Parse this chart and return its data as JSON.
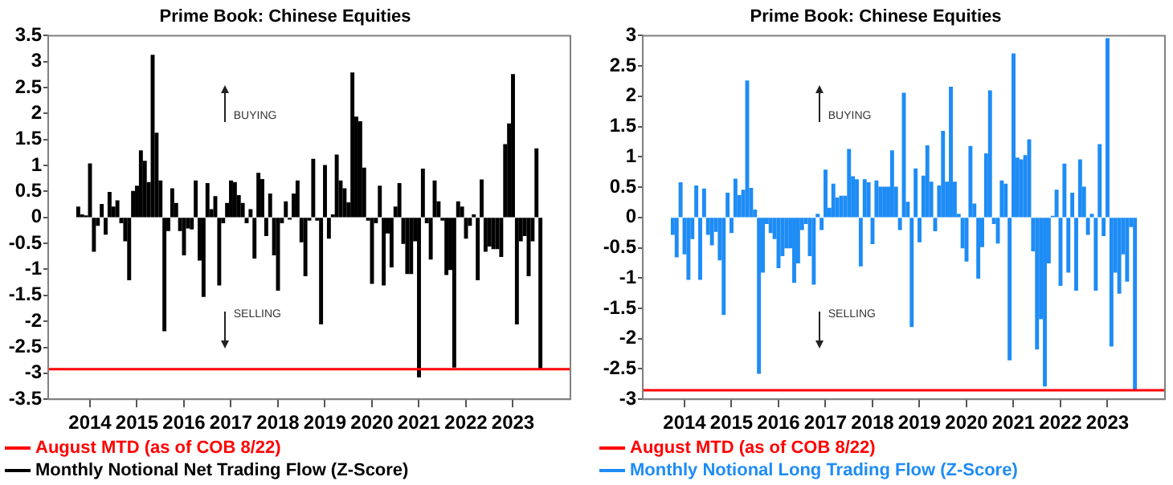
{
  "chart_data": [
    {
      "type": "bar",
      "title": "Prime Book: Chinese Equities",
      "legend": "bottom",
      "annotations": [
        "BUYING",
        "SELLING"
      ],
      "x": [
        "2013-10",
        "2013-11",
        "2013-12",
        "2014-01",
        "2014-02",
        "2014-03",
        "2014-04",
        "2014-05",
        "2014-06",
        "2014-07",
        "2014-08",
        "2014-09",
        "2014-10",
        "2014-11",
        "2014-12",
        "2015-01",
        "2015-02",
        "2015-03",
        "2015-04",
        "2015-05",
        "2015-06",
        "2015-07",
        "2015-08",
        "2015-09",
        "2015-10",
        "2015-11",
        "2015-12",
        "2016-01",
        "2016-02",
        "2016-03",
        "2016-04",
        "2016-05",
        "2016-06",
        "2016-07",
        "2016-08",
        "2016-09",
        "2016-10",
        "2016-11",
        "2016-12",
        "2017-01",
        "2017-02",
        "2017-03",
        "2017-04",
        "2017-05",
        "2017-06",
        "2017-07",
        "2017-08",
        "2017-09",
        "2017-10",
        "2017-11",
        "2017-12",
        "2018-01",
        "2018-02",
        "2018-03",
        "2018-04",
        "2018-05",
        "2018-06",
        "2018-07",
        "2018-08",
        "2018-09",
        "2018-10",
        "2018-11",
        "2018-12",
        "2019-01",
        "2019-02",
        "2019-03",
        "2019-04",
        "2019-05",
        "2019-06",
        "2019-07",
        "2019-08",
        "2019-09",
        "2019-10",
        "2019-11",
        "2019-12",
        "2020-01",
        "2020-02",
        "2020-03",
        "2020-04",
        "2020-05",
        "2020-06",
        "2020-07",
        "2020-08",
        "2020-09",
        "2020-10",
        "2020-11",
        "2020-12",
        "2021-01",
        "2021-02",
        "2021-03",
        "2021-04",
        "2021-05",
        "2021-06",
        "2021-07",
        "2021-08",
        "2021-09",
        "2021-10",
        "2021-11",
        "2021-12",
        "2022-01",
        "2022-02",
        "2022-03",
        "2022-04",
        "2022-05",
        "2022-06",
        "2022-07",
        "2022-08",
        "2022-09",
        "2022-10",
        "2022-11",
        "2022-12",
        "2023-01",
        "2023-02",
        "2023-03",
        "2023-04",
        "2023-05",
        "2023-06",
        "2023-07",
        "2023-08"
      ],
      "series": [
        {
          "name": "Monthly Notional Net Trading Flow (Z-Score)",
          "color": "#000000",
          "values": [
            0.2,
            0.05,
            0.03,
            1.03,
            -0.65,
            -0.15,
            0.25,
            -0.32,
            0.48,
            0.2,
            0.32,
            -0.1,
            -0.45,
            -1.2,
            0.5,
            0.6,
            1.28,
            1.08,
            0.67,
            3.12,
            1.62,
            0.7,
            -2.18,
            -0.25,
            0.55,
            0.27,
            -0.25,
            -0.72,
            -0.2,
            -0.22,
            0.7,
            -0.82,
            -1.52,
            0.65,
            0.15,
            0.4,
            -1.3,
            -0.1,
            0.27,
            0.7,
            0.67,
            0.42,
            0.27,
            -0.1,
            0.15,
            -0.78,
            0.85,
            0.73,
            -0.35,
            0.45,
            -0.72,
            -1.4,
            -0.1,
            0.3,
            -0.03,
            0.45,
            0.7,
            -0.47,
            -1.12,
            -0.05,
            1.12,
            -0.05,
            -2.05,
            1.0,
            -0.4,
            0.05,
            1.2,
            0.7,
            0.55,
            0.28,
            2.78,
            1.93,
            1.84,
            0.95,
            -0.05,
            -1.27,
            -0.1,
            0.6,
            -1.3,
            -0.3,
            -0.95,
            0.2,
            0.65,
            -0.5,
            -1.08,
            -1.08,
            -0.45,
            -3.07,
            0.93,
            -0.1,
            -0.8,
            0.7,
            0.3,
            -0.05,
            -1.1,
            -1.0,
            -2.88,
            0.3,
            0.2,
            -0.4,
            -0.15,
            0.05,
            -1.2,
            0.72,
            -0.65,
            -0.55,
            -0.6,
            -0.6,
            -0.75,
            1.4,
            1.8,
            2.75,
            -2.05,
            -0.45,
            -0.35,
            -1.12,
            -0.45,
            1.32,
            -2.92
          ]
        }
      ],
      "ref_lines": [
        {
          "axis": "y",
          "value": -2.92,
          "label": "August MTD (as of COB 8/22)",
          "color": "#ff0000"
        }
      ],
      "xlim": [
        "2013-09",
        "2023-09"
      ],
      "xticks": [
        "2014",
        "2015",
        "2016",
        "2017",
        "2018",
        "2019",
        "2020",
        "2021",
        "2022",
        "2023"
      ],
      "ylim": [
        -3.5,
        3.5
      ],
      "yticks": [
        -3.5,
        -3,
        -2.5,
        -2,
        -1.5,
        -1,
        -0.5,
        0,
        0.5,
        1,
        1.5,
        2,
        2.5,
        3,
        3.5
      ]
    },
    {
      "type": "bar",
      "title": "Prime Book: Chinese Equities",
      "legend": "bottom",
      "annotations": [
        "BUYING",
        "SELLING"
      ],
      "x": [
        "2013-10",
        "2013-11",
        "2013-12",
        "2014-01",
        "2014-02",
        "2014-03",
        "2014-04",
        "2014-05",
        "2014-06",
        "2014-07",
        "2014-08",
        "2014-09",
        "2014-10",
        "2014-11",
        "2014-12",
        "2015-01",
        "2015-02",
        "2015-03",
        "2015-04",
        "2015-05",
        "2015-06",
        "2015-07",
        "2015-08",
        "2015-09",
        "2015-10",
        "2015-11",
        "2015-12",
        "2016-01",
        "2016-02",
        "2016-03",
        "2016-04",
        "2016-05",
        "2016-06",
        "2016-07",
        "2016-08",
        "2016-09",
        "2016-10",
        "2016-11",
        "2016-12",
        "2017-01",
        "2017-02",
        "2017-03",
        "2017-04",
        "2017-05",
        "2017-06",
        "2017-07",
        "2017-08",
        "2017-09",
        "2017-10",
        "2017-11",
        "2017-12",
        "2018-01",
        "2018-02",
        "2018-03",
        "2018-04",
        "2018-05",
        "2018-06",
        "2018-07",
        "2018-08",
        "2018-09",
        "2018-10",
        "2018-11",
        "2018-12",
        "2019-01",
        "2019-02",
        "2019-03",
        "2019-04",
        "2019-05",
        "2019-06",
        "2019-07",
        "2019-08",
        "2019-09",
        "2019-10",
        "2019-11",
        "2019-12",
        "2020-01",
        "2020-02",
        "2020-03",
        "2020-04",
        "2020-05",
        "2020-06",
        "2020-07",
        "2020-08",
        "2020-09",
        "2020-10",
        "2020-11",
        "2020-12",
        "2021-01",
        "2021-02",
        "2021-03",
        "2021-04",
        "2021-05",
        "2021-06",
        "2021-07",
        "2021-08",
        "2021-09",
        "2021-10",
        "2021-11",
        "2021-12",
        "2022-01",
        "2022-02",
        "2022-03",
        "2022-04",
        "2022-05",
        "2022-06",
        "2022-07",
        "2022-08",
        "2022-09",
        "2022-10",
        "2022-11",
        "2022-12",
        "2023-01",
        "2023-02",
        "2023-03",
        "2023-04",
        "2023-05",
        "2023-06",
        "2023-07",
        "2023-08"
      ],
      "series": [
        {
          "name": "Monthly Notional Long Trading Flow (Z-Score)",
          "color": "#1e8cf5",
          "values": [
            -0.28,
            -0.65,
            0.57,
            -0.6,
            -1.02,
            -0.35,
            0.52,
            -1.02,
            0.47,
            -0.28,
            -0.45,
            -0.23,
            -0.7,
            -1.6,
            0.4,
            -0.25,
            0.63,
            0.36,
            0.45,
            2.25,
            0.48,
            0.12,
            -2.57,
            -0.9,
            -0.1,
            -0.25,
            -0.35,
            -0.83,
            -0.63,
            -0.5,
            -0.5,
            -1.07,
            -0.75,
            -0.2,
            -0.1,
            -0.63,
            -1.1,
            0.05,
            -0.2,
            0.78,
            0.15,
            0.55,
            0.32,
            0.35,
            0.35,
            1.12,
            0.67,
            0.62,
            -0.8,
            0.62,
            0.57,
            -0.43,
            0.6,
            0.5,
            0.5,
            0.5,
            1.1,
            0.5,
            -0.2,
            2.05,
            0.25,
            -1.8,
            0.8,
            -0.4,
            0.68,
            1.18,
            0.58,
            -0.22,
            0.52,
            1.42,
            0.58,
            2.15,
            0.58,
            0.05,
            -0.5,
            -0.72,
            1.17,
            0.22,
            -1.0,
            -0.48,
            1.05,
            2.09,
            -0.1,
            -0.42,
            0.6,
            0.55,
            -2.35,
            2.7,
            0.98,
            0.95,
            1.02,
            1.28,
            -0.55,
            -2.17,
            -1.67,
            -2.78,
            -0.75,
            0.02,
            0.45,
            -1.12,
            0.88,
            -0.9,
            0.4,
            -1.2,
            0.95,
            0.5,
            -0.28,
            0.05,
            -1.2,
            1.2,
            -0.3,
            2.95,
            -2.12,
            -0.9,
            -1.25,
            -0.6,
            -1.05,
            -0.15,
            -2.85
          ]
        }
      ],
      "ref_lines": [
        {
          "axis": "y",
          "value": -2.85,
          "label": "August MTD (as of COB 8/22)",
          "color": "#ff0000"
        }
      ],
      "xlim": [
        "2013-09",
        "2023-09"
      ],
      "xticks": [
        "2014",
        "2015",
        "2016",
        "2017",
        "2018",
        "2019",
        "2020",
        "2021",
        "2022",
        "2023"
      ],
      "ylim": [
        -3,
        3
      ],
      "yticks": [
        -3,
        -2.5,
        -2,
        -1.5,
        -1,
        -0.5,
        0,
        0.5,
        1,
        1.5,
        2,
        2.5,
        3
      ]
    }
  ]
}
